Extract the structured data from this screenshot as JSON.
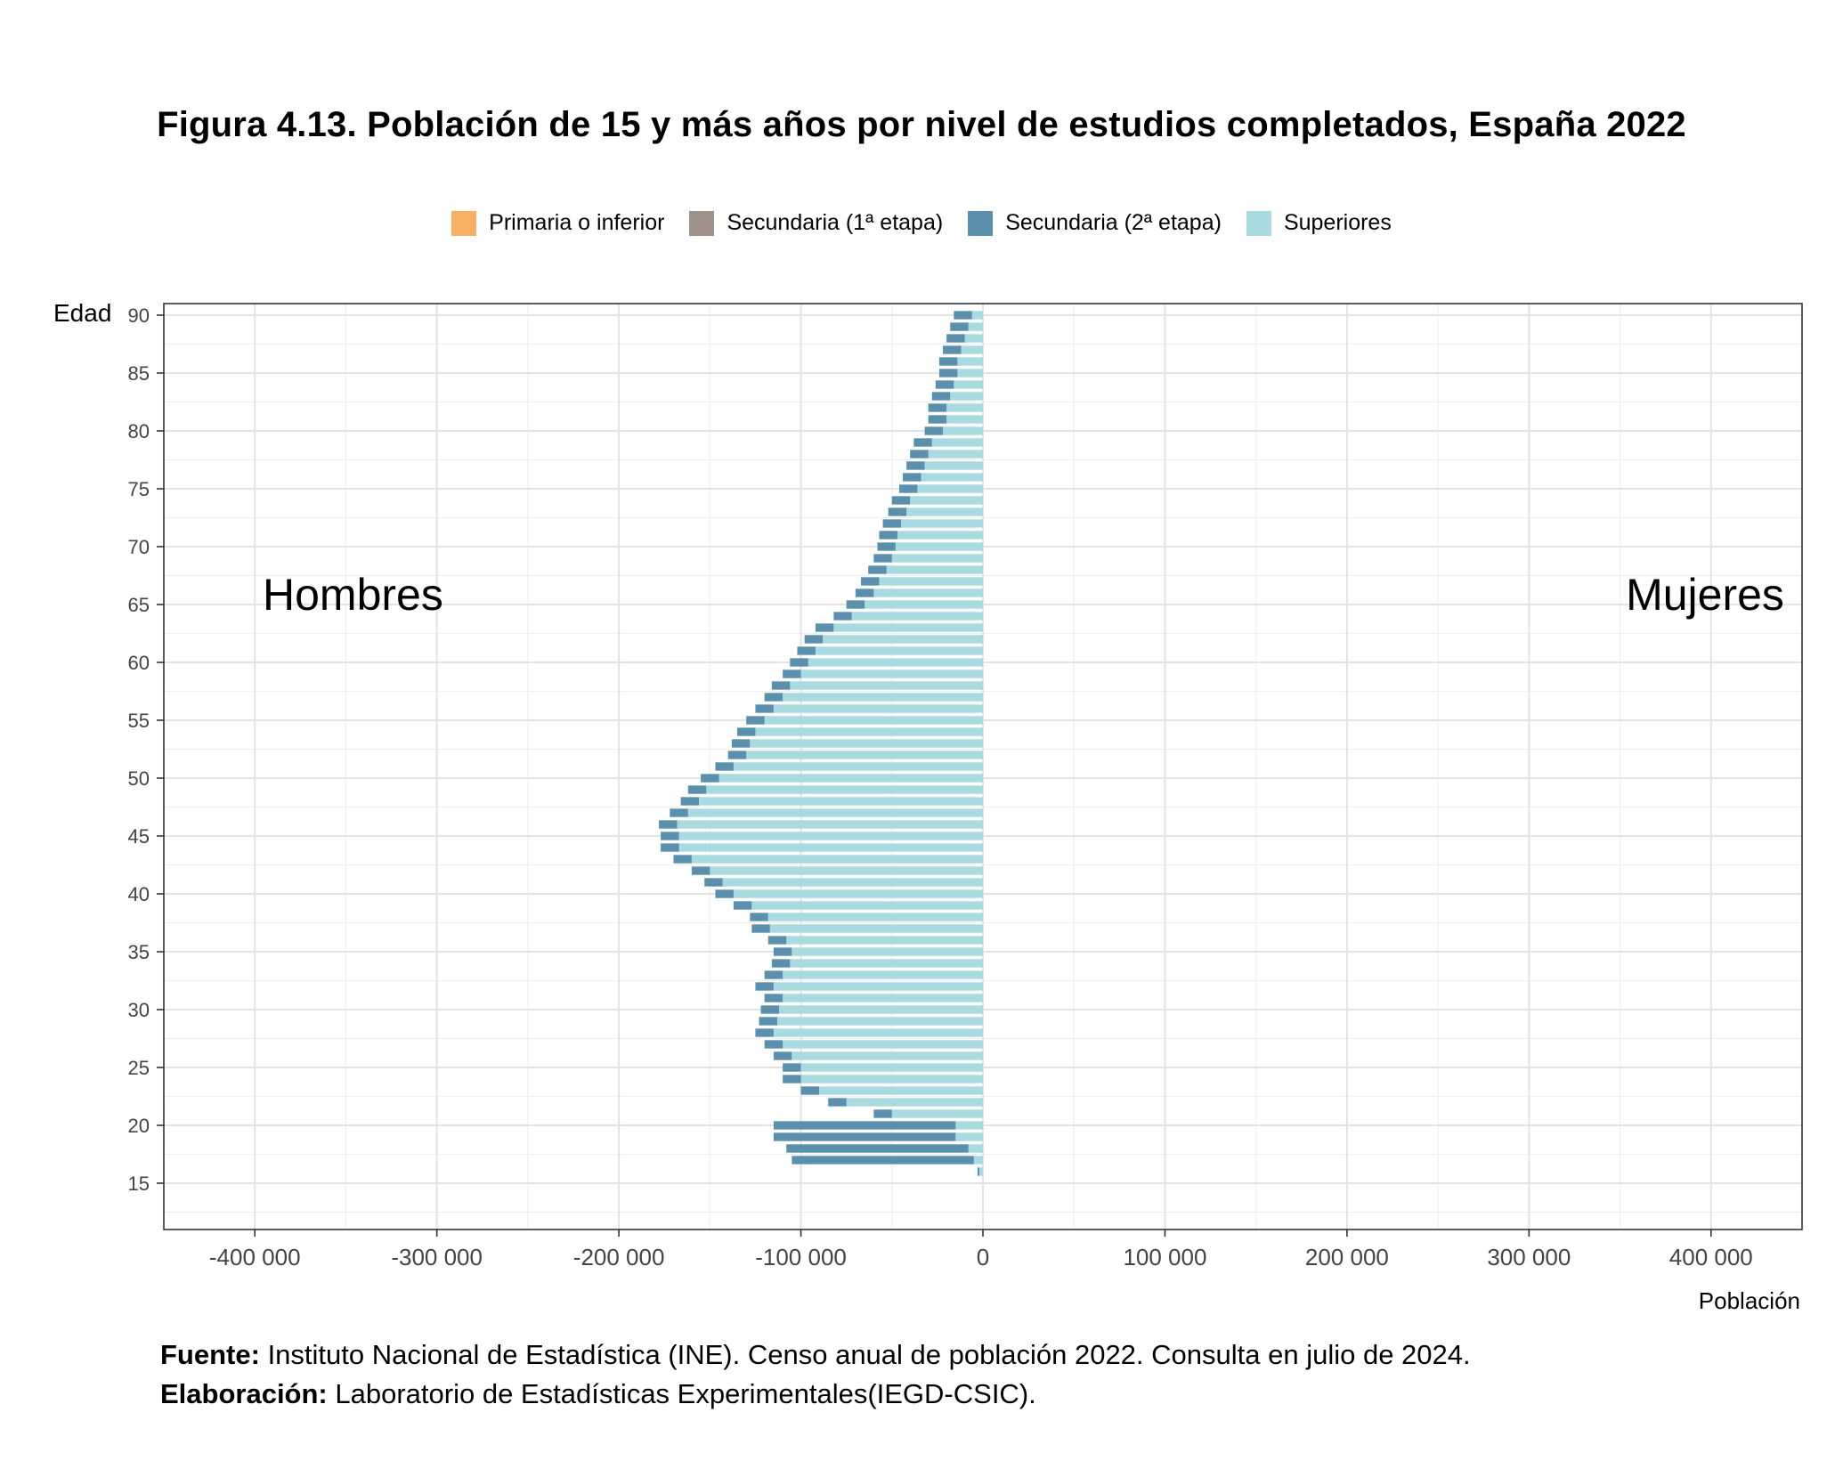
{
  "title": "Figura 4.13. Población de 15 y más años por nivel de estudios completados, España 2022",
  "legend": [
    {
      "label": "Primaria o inferior",
      "color": "#F8B163"
    },
    {
      "label": "Secundaria (1ª etapa)",
      "color": "#9D918A"
    },
    {
      "label": "Secundaria (2ª etapa)",
      "color": "#5B90AD"
    },
    {
      "label": "Superiores",
      "color": "#A8DADF"
    }
  ],
  "footer": {
    "source_label": "Fuente:",
    "source_text": "Instituto Nacional de Estadística (INE). Censo anual de población 2022. Consulta en julio de 2024.",
    "elab_label": "Elaboración:",
    "elab_text": "Laboratorio de Estadísticas Experimentales(IEGD-CSIC)."
  },
  "chart_data": {
    "type": "bar",
    "orientation": "horizontal-stacked-pyramid",
    "ylabel": "Edad",
    "xlabel": "Población",
    "xlim": [
      -450000,
      450000
    ],
    "ylim": [
      11,
      91
    ],
    "xticks": [
      -400000,
      -300000,
      -200000,
      -100000,
      0,
      100000,
      200000,
      300000,
      400000
    ],
    "xtick_labels": [
      "-400 000",
      "-300 000",
      "-200 000",
      "-100 000",
      "0",
      "100 000",
      "200 000",
      "300 000",
      "400 000"
    ],
    "yticks": [
      15,
      20,
      25,
      30,
      35,
      40,
      45,
      50,
      55,
      60,
      65,
      70,
      75,
      80,
      85,
      90
    ],
    "grid": true,
    "annotations": {
      "left": "Hombres",
      "right": "Mujeres"
    },
    "series_order": [
      "Superiores",
      "Secundaria (2ª etapa)",
      "Secundaria (1ª etapa)",
      "Primaria o inferior"
    ],
    "ages": [
      15,
      16,
      17,
      18,
      19,
      20,
      21,
      22,
      23,
      24,
      25,
      26,
      27,
      28,
      29,
      30,
      31,
      32,
      33,
      34,
      35,
      36,
      37,
      38,
      39,
      40,
      41,
      42,
      43,
      44,
      45,
      46,
      47,
      48,
      49,
      50,
      51,
      52,
      53,
      54,
      55,
      56,
      57,
      58,
      59,
      60,
      61,
      62,
      63,
      64,
      65,
      66,
      67,
      68,
      69,
      70,
      71,
      72,
      73,
      74,
      75,
      76,
      77,
      78,
      79,
      80,
      81,
      82,
      83,
      84,
      85,
      86,
      87,
      88,
      89,
      90
    ],
    "hombres": {
      "Superiores": [
        0,
        2000,
        5000,
        8000,
        15000,
        15000,
        50000,
        75000,
        90000,
        100000,
        100000,
        105000,
        110000,
        115000,
        113000,
        112000,
        110000,
        115000,
        110000,
        106000,
        105000,
        108000,
        117000,
        118000,
        127000,
        137000,
        143000,
        150000,
        160000,
        167000,
        167000,
        168000,
        162000,
        156000,
        152000,
        145000,
        137000,
        130000,
        128000,
        125000,
        120000,
        115000,
        110000,
        106000,
        100000,
        96000,
        92000,
        88000,
        82000,
        72000,
        65000,
        60000,
        57000,
        53000,
        50000,
        48000,
        47000,
        45000,
        42000,
        40000,
        36000,
        34000,
        32000,
        30000,
        28000,
        22000,
        20000,
        20000,
        18000,
        16000,
        14000,
        14000,
        12000,
        10000,
        8000,
        6000
      ],
      "Secundaria (2ª etapa)": [
        0,
        1000,
        100000,
        100000,
        100000,
        100000,
        10000,
        10000,
        10000,
        10000,
        10000,
        10000,
        10000,
        10000,
        10000,
        10000,
        10000,
        10000,
        10000,
        10000,
        10000,
        10000,
        10000,
        10000,
        10000,
        10000,
        10000,
        10000,
        10000,
        10000,
        10000,
        10000,
        10000,
        10000,
        10000,
        10000,
        10000,
        10000,
        10000,
        10000,
        10000,
        10000,
        10000,
        10000,
        10000,
        10000,
        10000,
        10000,
        10000,
        10000,
        10000,
        10000,
        10000,
        10000,
        10000,
        10000,
        10000,
        10000,
        10000,
        10000,
        10000,
        10000,
        10000,
        10000,
        10000,
        10000,
        10000,
        10000,
        10000,
        10000,
        10000,
        10000,
        10000,
        10000,
        10000,
        10000
      ],
      "Secundaria (1ª etapa)": [
        0,
        0,
        0,
        0,
        0,
        0,
        0,
        0,
        0,
        0,
        0,
        0,
        0,
        0,
        0,
        0,
        0,
        0,
        0,
        0,
        0,
        0,
        0,
        0,
        0,
        0,
        0,
        0,
        0,
        0,
        0,
        0,
        0,
        0,
        0,
        0,
        0,
        0,
        0,
        0,
        0,
        0,
        0,
        0,
        0,
        0,
        0,
        0,
        0,
        0,
        0,
        0,
        0,
        0,
        0,
        0,
        0,
        0,
        0,
        0,
        0,
        0,
        0,
        0,
        0,
        0,
        0,
        0,
        0,
        0,
        0,
        0,
        0,
        0,
        0,
        0
      ],
      "Primaria o inferior": [
        0,
        0,
        0,
        0,
        0,
        0,
        0,
        0,
        0,
        0,
        0,
        0,
        0,
        0,
        0,
        0,
        0,
        0,
        0,
        0,
        0,
        0,
        0,
        0,
        0,
        0,
        0,
        0,
        0,
        0,
        0,
        0,
        0,
        0,
        0,
        0,
        0,
        0,
        0,
        0,
        0,
        0,
        0,
        0,
        0,
        0,
        0,
        0,
        0,
        0,
        0,
        0,
        0,
        0,
        0,
        0,
        0,
        0,
        0,
        0,
        0,
        0,
        0,
        0,
        0,
        0,
        0,
        0,
        0,
        0,
        0,
        0,
        0,
        0,
        0,
        0
      ]
    },
    "mujeres": {}
  }
}
